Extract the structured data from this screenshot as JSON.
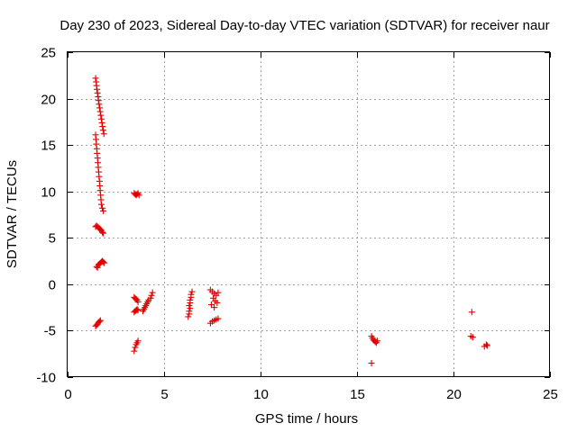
{
  "chart_data": {
    "type": "scatter",
    "title": "Day 230 of 2023, Sidereal Day-to-day VTEC variation (SDTVAR) for receiver naur",
    "xlabel": "GPS time / hours",
    "ylabel": "SDTVAR / TECUs",
    "xlim": [
      0,
      25
    ],
    "ylim": [
      -10,
      25
    ],
    "xticks": [
      0,
      5,
      10,
      15,
      20,
      25
    ],
    "yticks": [
      -10,
      -5,
      0,
      5,
      10,
      15,
      20,
      25
    ],
    "grid": true,
    "marker": "+",
    "color": "#e00000",
    "series": [
      {
        "name": "SDTVAR",
        "points": [
          [
            1.45,
            22.2
          ],
          [
            1.48,
            21.8
          ],
          [
            1.5,
            21.4
          ],
          [
            1.52,
            21.0
          ],
          [
            1.55,
            20.6
          ],
          [
            1.58,
            20.2
          ],
          [
            1.6,
            19.8
          ],
          [
            1.63,
            19.4
          ],
          [
            1.66,
            19.0
          ],
          [
            1.69,
            18.6
          ],
          [
            1.72,
            18.2
          ],
          [
            1.75,
            17.8
          ],
          [
            1.78,
            17.4
          ],
          [
            1.81,
            17.0
          ],
          [
            1.84,
            16.6
          ],
          [
            1.88,
            16.2
          ],
          [
            1.45,
            16.1
          ],
          [
            1.47,
            15.6
          ],
          [
            1.49,
            15.1
          ],
          [
            1.51,
            14.6
          ],
          [
            1.53,
            14.1
          ],
          [
            1.55,
            13.6
          ],
          [
            1.57,
            13.1
          ],
          [
            1.59,
            12.6
          ],
          [
            1.61,
            12.1
          ],
          [
            1.63,
            11.6
          ],
          [
            1.65,
            11.1
          ],
          [
            1.67,
            10.6
          ],
          [
            1.69,
            10.1
          ],
          [
            1.71,
            9.6
          ],
          [
            1.73,
            9.1
          ],
          [
            1.75,
            8.6
          ],
          [
            1.8,
            8.2
          ],
          [
            1.85,
            7.9
          ],
          [
            1.45,
            6.2
          ],
          [
            1.5,
            6.3
          ],
          [
            1.55,
            6.2
          ],
          [
            1.6,
            6.1
          ],
          [
            1.65,
            6.0
          ],
          [
            1.7,
            5.9
          ],
          [
            1.75,
            5.8
          ],
          [
            1.8,
            5.6
          ],
          [
            1.85,
            5.5
          ],
          [
            1.5,
            1.9
          ],
          [
            1.55,
            1.8
          ],
          [
            1.6,
            2.1
          ],
          [
            1.65,
            2.2
          ],
          [
            1.7,
            2.3
          ],
          [
            1.75,
            2.4
          ],
          [
            1.8,
            2.5
          ],
          [
            1.85,
            2.4
          ],
          [
            1.9,
            2.3
          ],
          [
            1.45,
            -4.5
          ],
          [
            1.5,
            -4.4
          ],
          [
            1.55,
            -4.3
          ],
          [
            1.6,
            -4.1
          ],
          [
            1.65,
            -4.0
          ],
          [
            1.7,
            -3.9
          ],
          [
            3.45,
            9.8
          ],
          [
            3.5,
            9.7
          ],
          [
            3.55,
            9.6
          ],
          [
            3.6,
            9.7
          ],
          [
            3.65,
            9.8
          ],
          [
            3.7,
            9.6
          ],
          [
            3.45,
            -1.4
          ],
          [
            3.5,
            -1.5
          ],
          [
            3.55,
            -1.6
          ],
          [
            3.6,
            -1.7
          ],
          [
            3.65,
            -1.9
          ],
          [
            3.45,
            -3.0
          ],
          [
            3.5,
            -2.9
          ],
          [
            3.55,
            -2.8
          ],
          [
            3.6,
            -2.7
          ],
          [
            3.65,
            -2.8
          ],
          [
            3.45,
            -7.2
          ],
          [
            3.5,
            -6.8
          ],
          [
            3.55,
            -6.5
          ],
          [
            3.6,
            -6.3
          ],
          [
            3.65,
            -6.1
          ],
          [
            3.9,
            -2.9
          ],
          [
            3.95,
            -2.7
          ],
          [
            4.0,
            -2.5
          ],
          [
            4.05,
            -2.3
          ],
          [
            4.1,
            -2.1
          ],
          [
            4.15,
            -1.9
          ],
          [
            4.2,
            -1.7
          ],
          [
            4.3,
            -1.5
          ],
          [
            4.35,
            -1.2
          ],
          [
            4.4,
            -0.9
          ],
          [
            6.25,
            -3.5
          ],
          [
            6.3,
            -3.2
          ],
          [
            6.3,
            -2.9
          ],
          [
            6.35,
            -2.6
          ],
          [
            6.3,
            -2.3
          ],
          [
            6.35,
            -2.0
          ],
          [
            6.35,
            -1.7
          ],
          [
            6.4,
            -1.4
          ],
          [
            6.4,
            -1.1
          ],
          [
            6.45,
            -0.8
          ],
          [
            7.4,
            -0.6
          ],
          [
            7.5,
            -0.8
          ],
          [
            7.6,
            -1.0
          ],
          [
            7.7,
            -1.2
          ],
          [
            7.8,
            -0.9
          ],
          [
            7.55,
            -1.5
          ],
          [
            7.65,
            -1.8
          ],
          [
            7.75,
            -2.0
          ],
          [
            7.45,
            -2.2
          ],
          [
            7.6,
            -2.5
          ],
          [
            7.4,
            -4.2
          ],
          [
            7.5,
            -4.0
          ],
          [
            7.6,
            -3.9
          ],
          [
            7.7,
            -3.8
          ],
          [
            7.8,
            -3.7
          ],
          [
            15.75,
            -5.6
          ],
          [
            15.8,
            -5.8
          ],
          [
            15.85,
            -6.0
          ],
          [
            15.9,
            -6.1
          ],
          [
            15.95,
            -6.2
          ],
          [
            16.0,
            -6.3
          ],
          [
            16.05,
            -6.1
          ],
          [
            15.75,
            -8.5
          ],
          [
            20.95,
            -3.0
          ],
          [
            20.9,
            -5.6
          ],
          [
            21.0,
            -5.7
          ],
          [
            21.6,
            -6.7
          ],
          [
            21.7,
            -6.5
          ],
          [
            21.75,
            -6.6
          ]
        ]
      }
    ]
  }
}
